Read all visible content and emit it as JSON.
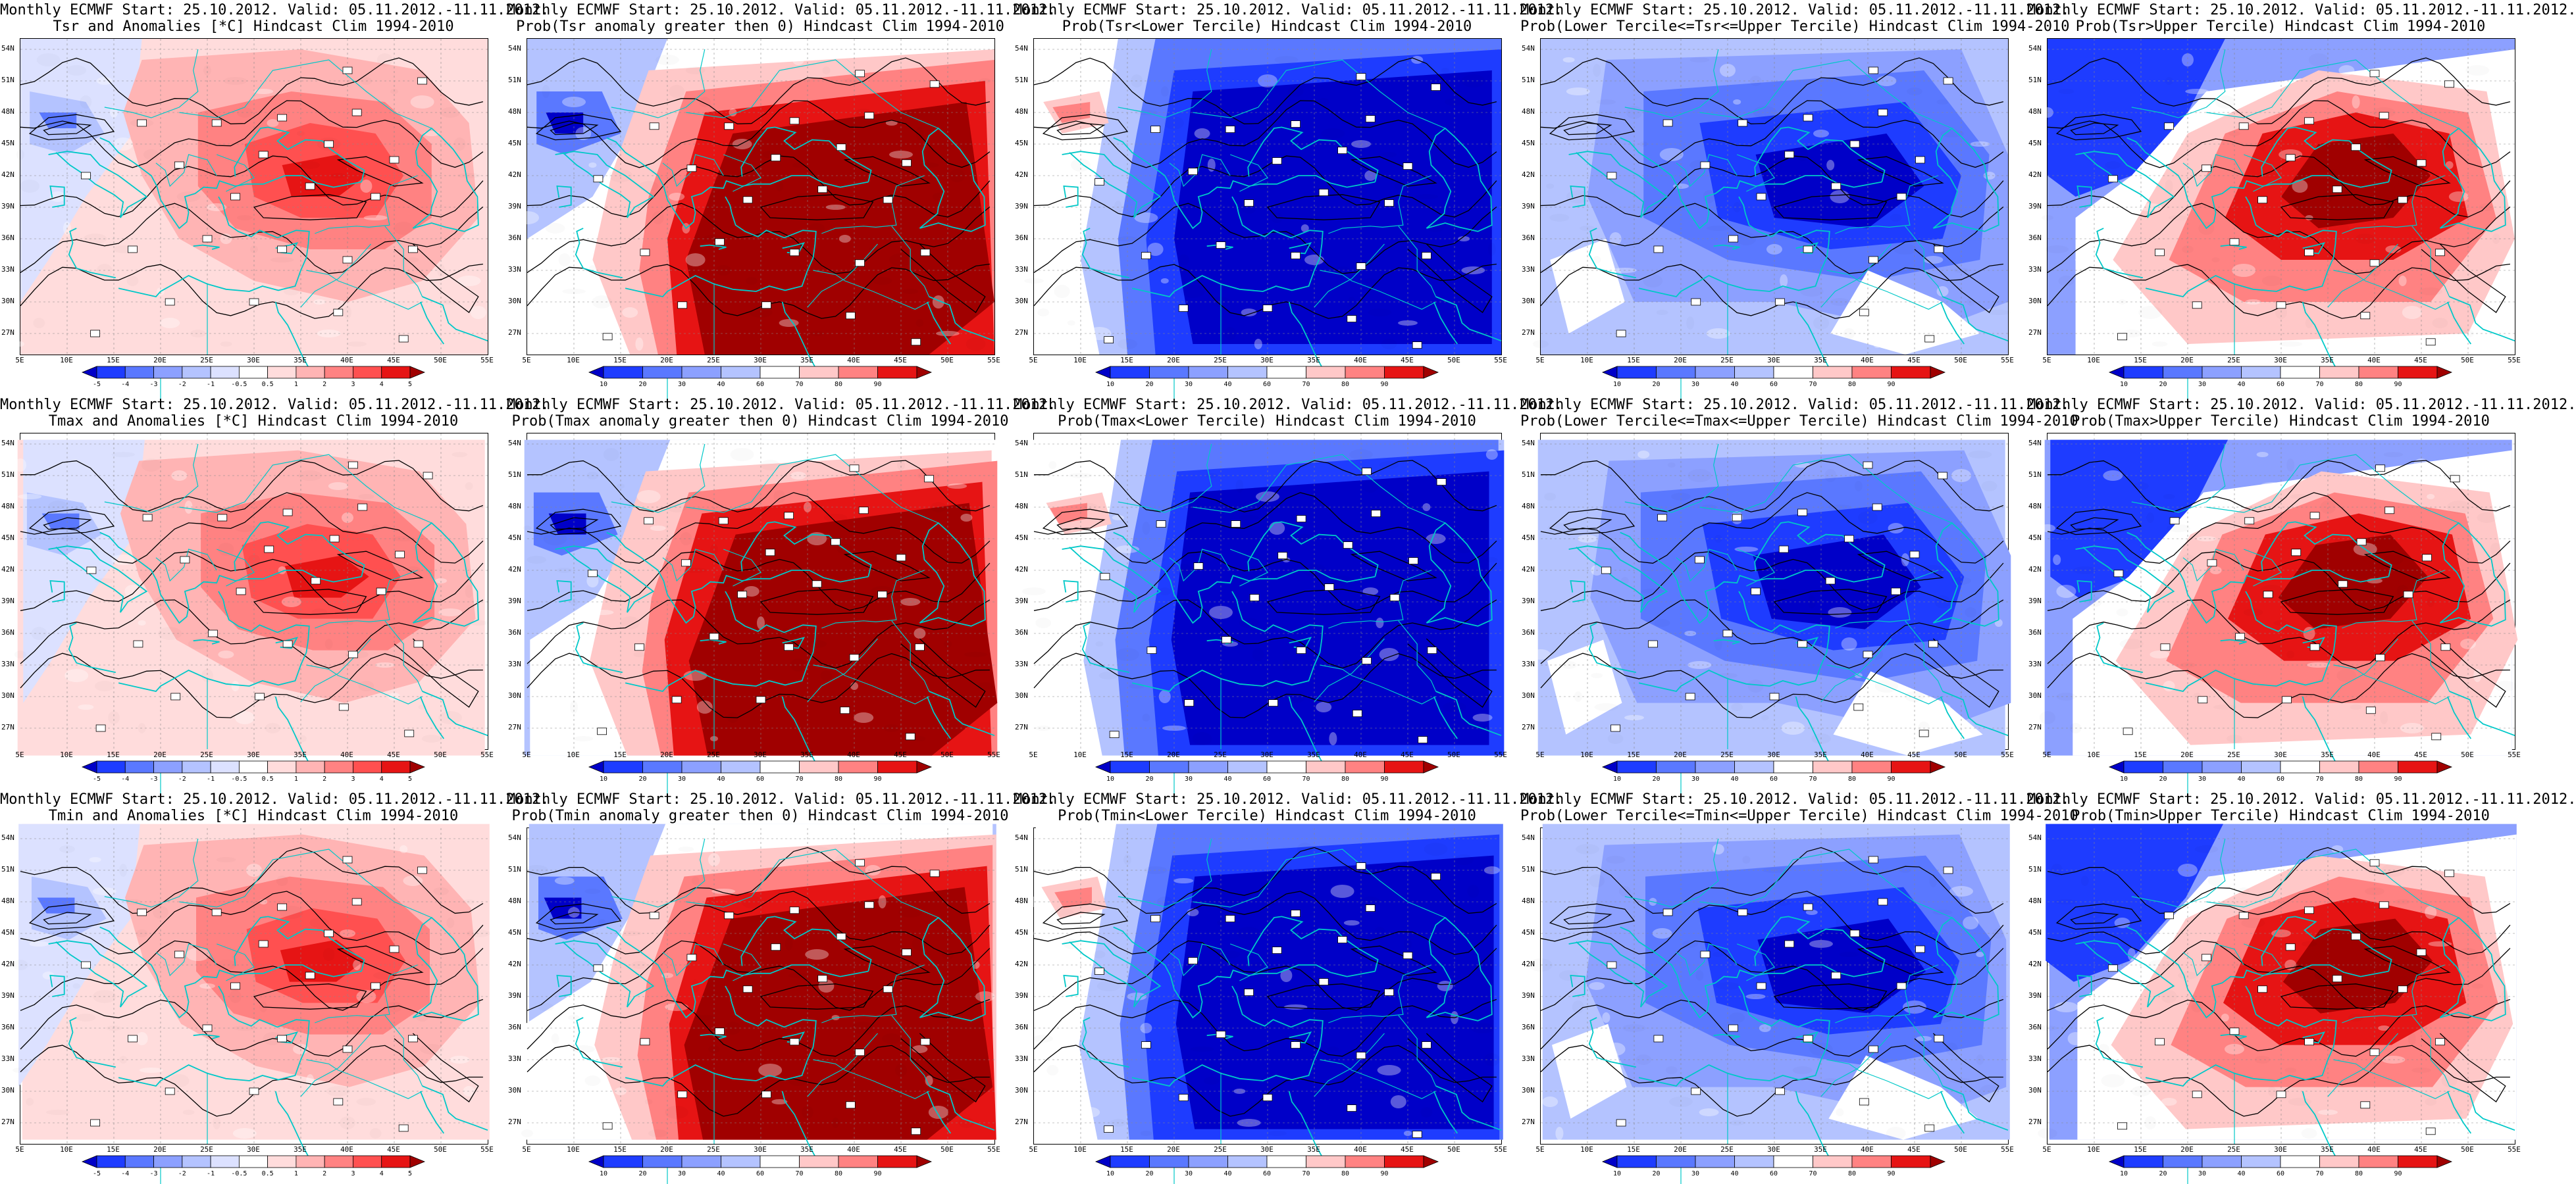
{
  "rows": [
    {
      "variable": "Tsr",
      "panels": [
        {
          "title1": "Monthly ECMWF Start: 25.10.2012. Valid: 05.11.2012.-11.11.2012.",
          "title2": "Tsr and Anomalies [*C] Hindcast Clim 1994-2010",
          "kind": "anomaly"
        },
        {
          "title1": "Monthly ECMWF Start: 25.10.2012. Valid: 05.11.2012.-11.11.2012.",
          "title2": "Prob(Tsr anomaly greater then 0) Hindcast Clim 1994-2010",
          "kind": "warm"
        },
        {
          "title1": "Monthly ECMWF Start: 25.10.2012. Valid: 05.11.2012.-11.11.2012.",
          "title2": "Prob(Tsr<Lower Tercile) Hindcast Clim 1994-2010",
          "kind": "cold"
        },
        {
          "title1": "Monthly ECMWF Start: 25.10.2012. Valid: 05.11.2012.-11.11.2012.",
          "title2": "Prob(Lower Tercile<=Tsr<=Upper Tercile) Hindcast Clim 1994-2010",
          "kind": "middle"
        },
        {
          "title1": "Monthly ECMWF Start: 25.10.2012. Valid: 05.11.2012.-11.11.2012.",
          "title2": "Prob(Tsr>Upper Tercile) Hindcast Clim 1994-2010",
          "kind": "upper"
        }
      ]
    },
    {
      "variable": "Tmax",
      "panels": [
        {
          "title1": "Monthly ECMWF Start: 25.10.2012. Valid: 05.11.2012.-11.11.2012.",
          "title2": "Tmax and Anomalies [*C] Hindcast Clim 1994-2010",
          "kind": "anomaly"
        },
        {
          "title1": "Monthly ECMWF Start: 25.10.2012. Valid: 05.11.2012.-11.11.2012.",
          "title2": "Prob(Tmax anomaly greater then 0) Hindcast Clim 1994-2010",
          "kind": "warm"
        },
        {
          "title1": "Monthly ECMWF Start: 25.10.2012. Valid: 05.11.2012.-11.11.2012.",
          "title2": "Prob(Tmax<Lower Tercile) Hindcast Clim 1994-2010",
          "kind": "cold"
        },
        {
          "title1": "Monthly ECMWF Start: 25.10.2012. Valid: 05.11.2012.-11.11.2012.",
          "title2": "Prob(Lower Tercile<=Tmax<=Upper Tercile) Hindcast Clim 1994-2010",
          "kind": "middle"
        },
        {
          "title1": "Monthly ECMWF Start: 25.10.2012. Valid: 05.11.2012.-11.11.2012.",
          "title2": "Prob(Tmax>Upper Tercile) Hindcast Clim 1994-2010",
          "kind": "upper"
        }
      ]
    },
    {
      "variable": "Tmin",
      "panels": [
        {
          "title1": "Monthly ECMWF Start: 25.10.2012. Valid: 05.11.2012.-11.11.2012.",
          "title2": "Tmin and Anomalies [*C] Hindcast Clim 1994-2010",
          "kind": "anomaly"
        },
        {
          "title1": "Monthly ECMWF Start: 25.10.2012. Valid: 05.11.2012.-11.11.2012.",
          "title2": "Prob(Tmin anomaly greater then 0) Hindcast Clim 1994-2010",
          "kind": "warm"
        },
        {
          "title1": "Monthly ECMWF Start: 25.10.2012. Valid: 05.11.2012.-11.11.2012.",
          "title2": "Prob(Tmin<Lower Tercile) Hindcast Clim 1994-2010",
          "kind": "cold"
        },
        {
          "title1": "Monthly ECMWF Start: 25.10.2012. Valid: 05.11.2012.-11.11.2012.",
          "title2": "Prob(Lower Tercile<=Tmin<=Upper Tercile) Hindcast Clim 1994-2010",
          "kind": "middle"
        },
        {
          "title1": "Monthly ECMWF Start: 25.10.2012. Valid: 05.11.2012.-11.11.2012.",
          "title2": "Prob(Tmin>Upper Tercile) Hindcast Clim 1994-2010",
          "kind": "upper"
        }
      ]
    }
  ],
  "lat_labels": [
    "54N",
    "51N",
    "48N",
    "45N",
    "42N",
    "39N",
    "36N",
    "33N",
    "30N",
    "27N"
  ],
  "lon_labels": [
    "5E",
    "10E",
    "15E",
    "20E",
    "25E",
    "30E",
    "35E",
    "40E",
    "45E",
    "50E",
    "55E"
  ],
  "colorbars": {
    "anomaly": {
      "ticks": [
        "-5",
        "-4",
        "-3",
        "-2",
        "-1",
        "-0.5",
        "0.5",
        "1",
        "2",
        "3",
        "4",
        "5"
      ],
      "colors": [
        "#0000c8",
        "#1e3cff",
        "#5a78ff",
        "#8ca0ff",
        "#b4c3ff",
        "#dce1ff",
        "#ffffff",
        "#ffdcdc",
        "#ffb4b4",
        "#ff8282",
        "#ff5050",
        "#e61414",
        "#a00000"
      ]
    },
    "prob": {
      "ticks": [
        "10",
        "20",
        "30",
        "40",
        "60",
        "70",
        "80",
        "90"
      ],
      "colors": [
        "#0000c8",
        "#1e3cff",
        "#5a78ff",
        "#8ca0ff",
        "#b4c3ff",
        "#ffffff",
        "#ffc8c8",
        "#ff8282",
        "#e61414",
        "#a00000"
      ]
    }
  },
  "contour_color": "#000000",
  "border_color": "#00c8c8"
}
